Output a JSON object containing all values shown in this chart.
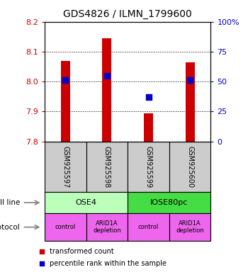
{
  "title": "GDS4826 / ILMN_1799600",
  "samples": [
    "GSM925597",
    "GSM925598",
    "GSM925599",
    "GSM925600"
  ],
  "red_values": [
    8.068,
    8.145,
    7.893,
    8.065
  ],
  "blue_percentiles": [
    51.5,
    55.0,
    37.0,
    51.5
  ],
  "y_min": 7.8,
  "y_max": 8.2,
  "y_ticks": [
    7.8,
    7.9,
    8.0,
    8.1,
    8.2
  ],
  "right_y_ticks": [
    0,
    25,
    50,
    75,
    100
  ],
  "right_y_labels": [
    "0",
    "25",
    "50",
    "75",
    "100%"
  ],
  "cell_lines": [
    "OSE4",
    "IOSE80pc"
  ],
  "cell_line_spans": [
    [
      0,
      2
    ],
    [
      2,
      4
    ]
  ],
  "cell_line_colors": [
    "#bbffbb",
    "#44dd44"
  ],
  "protocols": [
    "control",
    "ARID1A\ndepletion",
    "control",
    "ARID1A\ndepletion"
  ],
  "protocol_color": "#ee66ee",
  "sample_box_color": "#cccccc",
  "bar_color": "#cc0000",
  "dot_color": "#0000cc",
  "dot_size": 35,
  "legend_red": "transformed count",
  "legend_blue": "percentile rank within the sample",
  "left_label_color": "#cc0000",
  "right_label_color": "#0000cc"
}
